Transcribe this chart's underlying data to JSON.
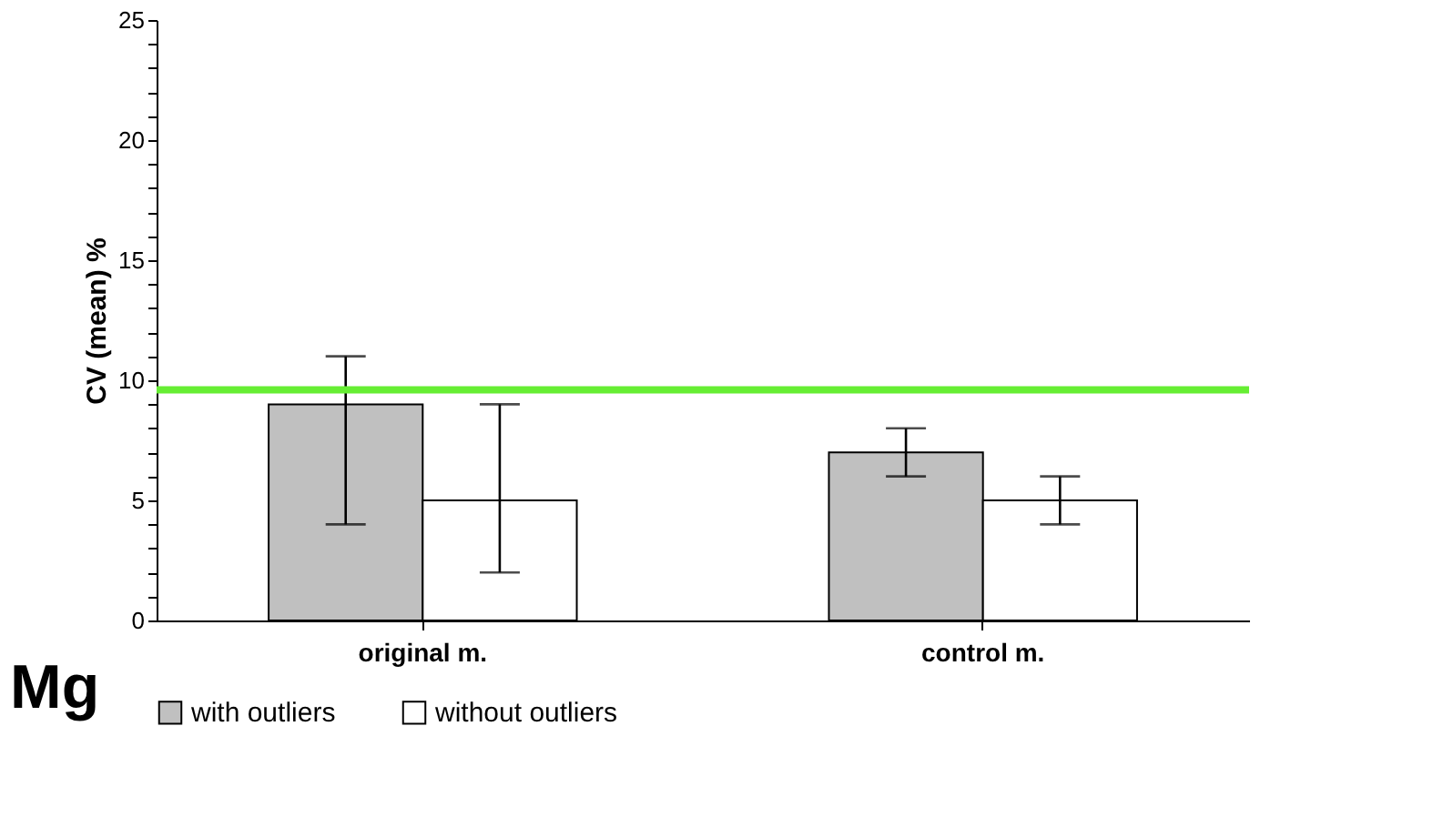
{
  "chart_data": {
    "type": "bar",
    "title": "Mg",
    "ylabel": "CV (mean)  %",
    "categories": [
      "original m.",
      "control m."
    ],
    "series": [
      {
        "name": "with  outliers",
        "color": "#c0c0c0",
        "values": [
          9,
          7
        ],
        "errors": [
          [
            4,
            11
          ],
          [
            6,
            8
          ]
        ]
      },
      {
        "name": "without  outliers",
        "color": "#ffffff",
        "values": [
          5,
          5
        ],
        "errors": [
          [
            2,
            9
          ],
          [
            4,
            6
          ]
        ]
      }
    ],
    "ylim": [
      0,
      25
    ],
    "yticks": [
      0,
      {
        "value": 1,
        "label": null
      },
      {
        "value": 2,
        "label": null
      },
      {
        "value": 3,
        "label": null
      },
      {
        "value": 4,
        "label": null
      },
      5,
      {
        "value": 6,
        "label": null
      },
      {
        "value": 7,
        "label": null
      },
      {
        "value": 8,
        "label": null
      },
      {
        "value": 9,
        "label": null
      },
      10,
      {
        "value": 11,
        "label": null
      },
      {
        "value": 12,
        "label": null
      },
      {
        "value": 13,
        "label": null
      },
      {
        "value": 14,
        "label": null
      },
      15,
      {
        "value": 16,
        "label": null
      },
      {
        "value": 17,
        "label": null
      },
      {
        "value": 18,
        "label": null
      },
      {
        "value": 19,
        "label": null
      },
      20,
      {
        "value": 21,
        "label": null
      },
      {
        "value": 22,
        "label": null
      },
      {
        "value": 23,
        "label": null
      },
      {
        "value": 24,
        "label": null
      },
      25
    ],
    "ref_lines": [
      {
        "axis": "y",
        "value": 9.6,
        "color": "#66ee33"
      }
    ],
    "grid": false,
    "legend": "bottom"
  }
}
